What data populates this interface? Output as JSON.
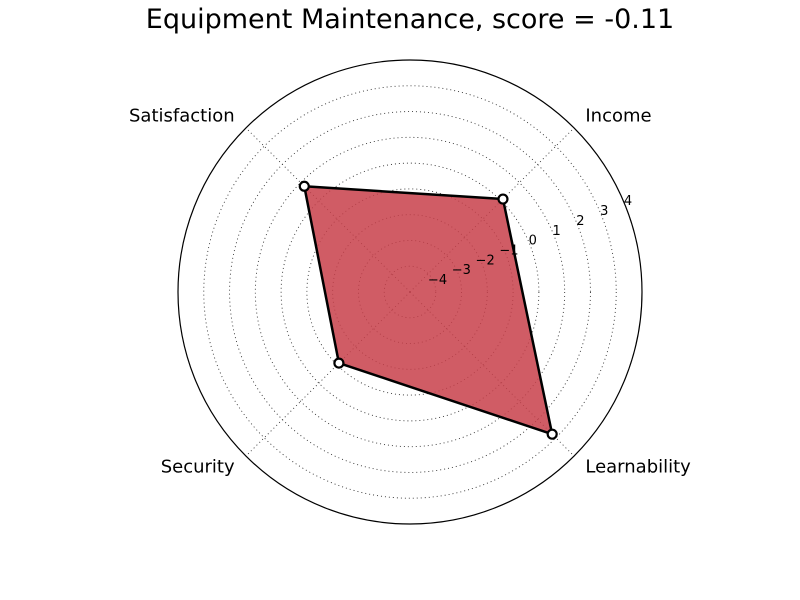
{
  "chart_data": {
    "type": "radar",
    "title": "Equipment Maintenance, score = -0.11",
    "axes": [
      "Income",
      "Learnability",
      "Security",
      "Satisfaction"
    ],
    "values": [
      0.1,
      2.8,
      -1.1,
      0.8
    ],
    "rlim": [
      -5,
      4
    ],
    "ticks": [
      -4,
      -3,
      -2,
      -1,
      0,
      1,
      2,
      3,
      4
    ],
    "tick_labels": [
      "−4",
      "−3",
      "−2",
      "−1",
      "0",
      "1",
      "2",
      "3",
      "4"
    ],
    "grid": true,
    "colors": {
      "fill": "#c8404a",
      "fill_opacity": 0.85,
      "line": "#000000",
      "marker_face": "#ffffff"
    }
  }
}
